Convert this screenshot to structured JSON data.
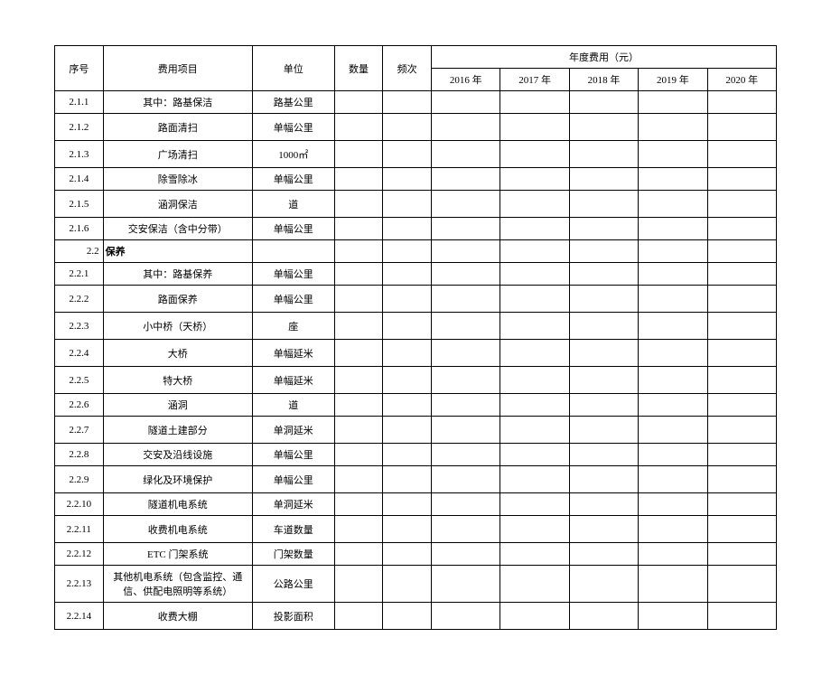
{
  "header": {
    "seq": "序号",
    "item": "费用项目",
    "unit": "单位",
    "qty": "数量",
    "freq": "频次",
    "annual": "年度费用（元）",
    "years": [
      "2016 年",
      "2017 年",
      "2018 年",
      "2019 年",
      "2020 年"
    ]
  },
  "rows": [
    {
      "seq": "2.1.1",
      "item": "其中：路基保洁",
      "unit": "路基公里",
      "tall": false
    },
    {
      "seq": "2.1.2",
      "item": "路面清扫",
      "unit": "单幅公里",
      "tall": true
    },
    {
      "seq": "2.1.3",
      "item": "广场清扫",
      "unit": "1000㎡",
      "tall": true
    },
    {
      "seq": "2.1.4",
      "item": "除雪除冰",
      "unit": "单幅公里",
      "tall": false
    },
    {
      "seq": "2.1.5",
      "item": "涵洞保洁",
      "unit": "道",
      "tall": true
    },
    {
      "seq": "2.1.6",
      "item": "交安保洁（含中分带）",
      "unit": "单幅公里",
      "tall": false
    }
  ],
  "section": {
    "seq": "2.2",
    "label": "保养"
  },
  "rows2": [
    {
      "seq": "2.2.1",
      "item": "其中：路基保养",
      "unit": "单幅公里",
      "tall": false
    },
    {
      "seq": "2.2.2",
      "item": "路面保养",
      "unit": "单幅公里",
      "tall": true
    },
    {
      "seq": "2.2.3",
      "item": "小中桥（天桥）",
      "unit": "座",
      "tall": true
    },
    {
      "seq": "2.2.4",
      "item": "大桥",
      "unit": "单幅延米",
      "tall": true
    },
    {
      "seq": "2.2.5",
      "item": "特大桥",
      "unit": "单幅延米",
      "tall": true
    },
    {
      "seq": "2.2.6",
      "item": "涵洞",
      "unit": "道",
      "tall": false
    },
    {
      "seq": "2.2.7",
      "item": "隧道土建部分",
      "unit": "单洞延米",
      "tall": true
    },
    {
      "seq": "2.2.8",
      "item": "交安及沿线设施",
      "unit": "单幅公里",
      "tall": false
    },
    {
      "seq": "2.2.9",
      "item": "绿化及环境保护",
      "unit": "单幅公里",
      "tall": true
    },
    {
      "seq": "2.2.10",
      "item": "隧道机电系统",
      "unit": "单洞延米",
      "tall": false
    },
    {
      "seq": "2.2.11",
      "item": "收费机电系统",
      "unit": "车道数量",
      "tall": true
    },
    {
      "seq": "2.2.12",
      "item": "ETC 门架系统",
      "unit": "门架数量",
      "tall": false
    },
    {
      "seq": "2.2.13",
      "item": "其他机电系统（包含监控、通信、供配电照明等系统）",
      "unit": "公路公里",
      "tall": true
    },
    {
      "seq": "2.2.14",
      "item": "收费大棚",
      "unit": "投影面积",
      "tall": true
    }
  ],
  "style": {
    "border_color": "#000000",
    "background": "#ffffff",
    "text_color": "#000000",
    "font_size": 11
  }
}
